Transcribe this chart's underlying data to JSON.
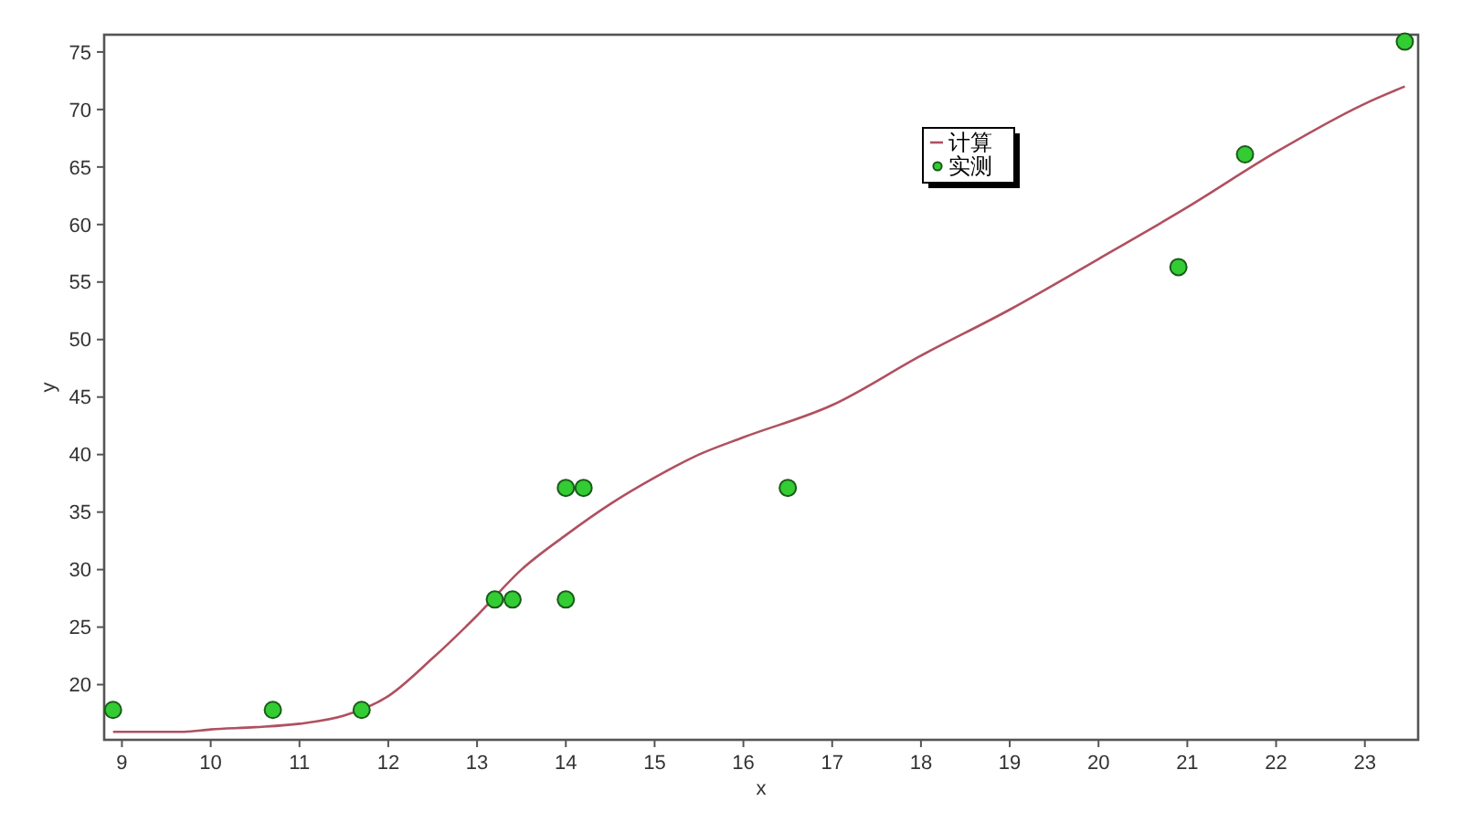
{
  "chart_data": {
    "type": "scatter",
    "xlabel": "x",
    "ylabel": "y",
    "xlim": [
      8.8,
      23.6
    ],
    "ylim": [
      15.2,
      76.5
    ],
    "xticks": [
      9,
      10,
      11,
      12,
      13,
      14,
      15,
      16,
      17,
      18,
      19,
      20,
      21,
      22,
      23
    ],
    "yticks": [
      20,
      25,
      30,
      35,
      40,
      45,
      50,
      55,
      60,
      65,
      70,
      75
    ],
    "grid": false,
    "legend": "top right",
    "series": [
      {
        "name": "计算",
        "type": "line",
        "color": "#b05060",
        "x": [
          8.9,
          9.7,
          10,
          10.5,
          11,
          11.5,
          12,
          12.5,
          13,
          13.5,
          14,
          14.5,
          15,
          15.5,
          16,
          17,
          18,
          19,
          20,
          21,
          22,
          23,
          23.45
        ],
        "values": [
          15.9,
          15.9,
          16.1,
          16.3,
          16.6,
          17.3,
          19,
          22.3,
          26,
          30,
          33,
          35.7,
          38,
          40,
          41.5,
          44.3,
          48.6,
          52.6,
          57,
          61.5,
          66.3,
          70.5,
          72
        ]
      },
      {
        "name": "实测",
        "color": "#33cc33",
        "marker": "circle",
        "x": [
          8.9,
          10.7,
          11.7,
          13.2,
          13.4,
          14.0,
          14.2,
          14.0,
          16.5,
          20.9,
          21.65,
          23.45
        ],
        "values": [
          17.8,
          17.8,
          17.8,
          27.4,
          27.4,
          37.1,
          37.1,
          27.4,
          37.1,
          56.3,
          66.1,
          75.9
        ]
      }
    ]
  }
}
